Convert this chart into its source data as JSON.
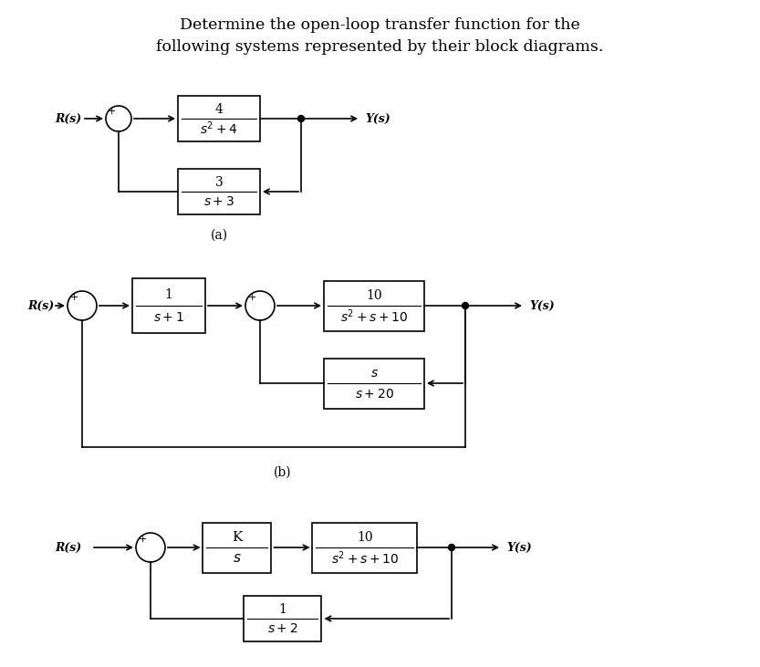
{
  "title_line1": "Determine the open-loop transfer function for the",
  "title_line2": "following systems represented by their block diagrams.",
  "title_fontsize": 12.5,
  "bg_color": "#ffffff",
  "diagram_a": {
    "label": "(a)",
    "Rs_label": "R(s)",
    "Ys_label": "Y(s)",
    "block1_num": "4",
    "block1_den": "$s^2+4$",
    "block2_num": "3",
    "block2_den": "$s+3$"
  },
  "diagram_b": {
    "label": "(b)",
    "Rs_label": "R(s)",
    "Ys_label": "Y(s)",
    "block1_num": "1",
    "block1_den": "$s+1$",
    "block2_num": "10",
    "block2_den": "$s^2+s+10$",
    "block3_num": "$s$",
    "block3_den": "$s+20$"
  },
  "diagram_c": {
    "label": "",
    "Rs_label": "R(s)",
    "Ys_label": "Y(s)",
    "block1_num": "K",
    "block1_den": "$s$",
    "block2_num": "10",
    "block2_den": "$s^2+s+10$",
    "block3_num": "1",
    "block3_den": "$s+2$"
  },
  "line_color": "#000000",
  "text_color": "#000000",
  "font_family": "serif"
}
